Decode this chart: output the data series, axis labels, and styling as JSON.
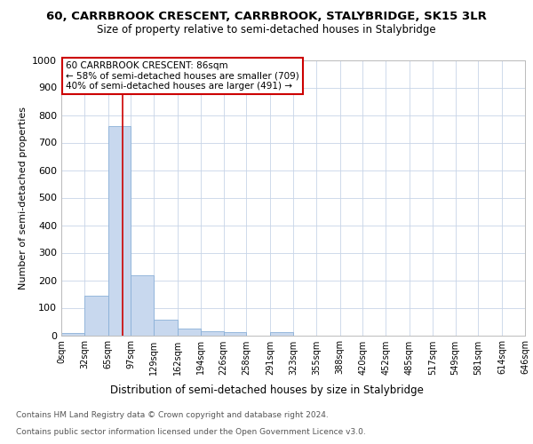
{
  "title1": "60, CARRBROOK CRESCENT, CARRBROOK, STALYBRIDGE, SK15 3LR",
  "title2": "Size of property relative to semi-detached houses in Stalybridge",
  "xlabel": "Distribution of semi-detached houses by size in Stalybridge",
  "ylabel": "Number of semi-detached properties",
  "bin_edges": [
    0,
    32,
    65,
    97,
    129,
    162,
    194,
    226,
    258,
    291,
    323,
    355,
    388,
    420,
    452,
    485,
    517,
    549,
    581,
    614,
    646
  ],
  "bin_labels": [
    "0sqm",
    "32sqm",
    "65sqm",
    "97sqm",
    "129sqm",
    "162sqm",
    "194sqm",
    "226sqm",
    "258sqm",
    "291sqm",
    "323sqm",
    "355sqm",
    "388sqm",
    "420sqm",
    "452sqm",
    "485sqm",
    "517sqm",
    "549sqm",
    "581sqm",
    "614sqm",
    "646sqm"
  ],
  "bar_heights": [
    8,
    145,
    760,
    218,
    55,
    24,
    13,
    10,
    0,
    10,
    0,
    0,
    0,
    0,
    0,
    0,
    0,
    0,
    0,
    0
  ],
  "bar_color": "#c8d8ee",
  "bar_edgecolor": "#8ab0d8",
  "property_size": 86,
  "vline_color": "#cc0000",
  "ylim": [
    0,
    1000
  ],
  "yticks": [
    0,
    100,
    200,
    300,
    400,
    500,
    600,
    700,
    800,
    900,
    1000
  ],
  "annotation_title": "60 CARRBROOK CRESCENT: 86sqm",
  "annotation_line1": "← 58% of semi-detached houses are smaller (709)",
  "annotation_line2": "40% of semi-detached houses are larger (491) →",
  "annotation_box_color": "#ffffff",
  "annotation_box_edgecolor": "#cc0000",
  "footer1": "Contains HM Land Registry data © Crown copyright and database right 2024.",
  "footer2": "Contains public sector information licensed under the Open Government Licence v3.0.",
  "background_color": "#ffffff",
  "grid_color": "#c8d4e8"
}
